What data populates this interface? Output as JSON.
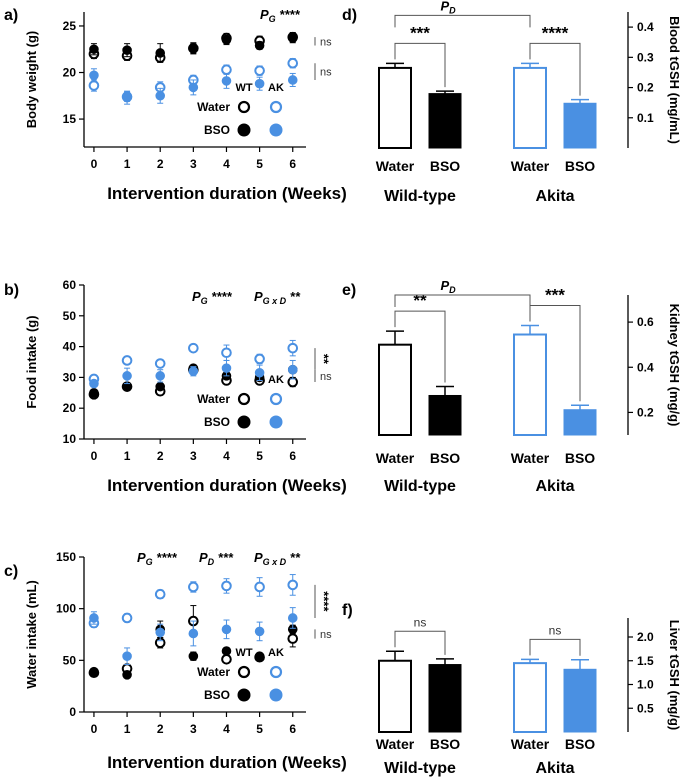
{
  "colors": {
    "wt": "#000000",
    "ak": "#4a90e2",
    "axis": "#000000",
    "sig": "#333333"
  },
  "legend": {
    "col_wt": "WT",
    "col_ak": "AK",
    "row_water": "Water",
    "row_bso": "BSO"
  },
  "chart_data": [
    {
      "id": "a",
      "type": "scatter",
      "panel_label": "a)",
      "xlabel": "Intervention duration (Weeks)",
      "ylabel": "Body weight (g)",
      "xlim": [
        -0.3,
        6.4
      ],
      "ylim": [
        12,
        26.5
      ],
      "yticks": [
        15,
        20,
        25
      ],
      "xticks": [
        0,
        1,
        2,
        3,
        4,
        5,
        6
      ],
      "x": [
        0,
        1,
        2,
        3,
        4,
        5,
        6
      ],
      "series": [
        {
          "name": "WT Water",
          "group": "wt",
          "filled": false,
          "values": [
            22.0,
            21.8,
            21.6,
            22.6,
            23.7,
            23.4,
            23.8
          ],
          "err": [
            0.5,
            0.5,
            0.5,
            0.5,
            0.5,
            0.5,
            0.5
          ]
        },
        {
          "name": "WT BSO",
          "group": "wt",
          "filled": true,
          "values": [
            22.5,
            22.4,
            22.1,
            22.6,
            23.5,
            22.9,
            23.7
          ],
          "err": [
            0.6,
            0.7,
            1.0,
            0.6,
            0.5,
            0.4,
            0.5
          ]
        },
        {
          "name": "AK Water",
          "group": "ak",
          "filled": false,
          "values": [
            18.6,
            17.4,
            18.4,
            19.2,
            20.3,
            20.2,
            21.0
          ],
          "err": [
            0.6,
            0.5,
            0.6,
            0.5,
            0.5,
            0.5,
            0.5
          ]
        },
        {
          "name": "AK BSO",
          "group": "ak",
          "filled": true,
          "values": [
            19.7,
            17.3,
            17.5,
            18.4,
            19.1,
            18.8,
            19.2
          ],
          "err": [
            0.7,
            0.7,
            0.8,
            0.8,
            0.8,
            0.7,
            0.7
          ]
        }
      ],
      "annotations": [
        {
          "main": "P",
          "sub": "G",
          "stars": " ****"
        }
      ],
      "brackets": [
        {
          "y1": 23.8,
          "y2": 22.9,
          "label": "ns"
        },
        {
          "y1": 21.0,
          "y2": 19.2,
          "label": "ns"
        }
      ],
      "legend_position": "bottom-right"
    },
    {
      "id": "b",
      "type": "scatter",
      "panel_label": "b)",
      "xlabel": "Intervention duration (Weeks)",
      "ylabel": "Food intake (g)",
      "xlim": [
        -0.3,
        6.4
      ],
      "ylim": [
        10,
        60
      ],
      "yticks": [
        10,
        20,
        30,
        40,
        50,
        60
      ],
      "xticks": [
        0,
        1,
        2,
        3,
        4,
        5,
        6
      ],
      "x": [
        0,
        1,
        2,
        3,
        4,
        5,
        6
      ],
      "series": [
        {
          "name": "WT Water",
          "group": "wt",
          "filled": false,
          "values": [
            24.5,
            27.0,
            25.5,
            32.5,
            29.0,
            29.0,
            28.5
          ],
          "err": [
            0.6,
            0.6,
            0.6,
            0.6,
            0.7,
            0.6,
            1.5
          ]
        },
        {
          "name": "WT BSO",
          "group": "wt",
          "filled": true,
          "values": [
            25.0,
            27.0,
            27.0,
            33.0,
            30.5,
            30.0,
            32.5
          ],
          "err": [
            0.7,
            0.7,
            0.7,
            0.8,
            1.0,
            0.8,
            1.0
          ]
        },
        {
          "name": "AK Water",
          "group": "ak",
          "filled": false,
          "values": [
            29.5,
            35.5,
            34.5,
            39.5,
            38.0,
            36.0,
            39.5
          ],
          "err": [
            0.8,
            1.0,
            1.0,
            1.0,
            2.5,
            1.5,
            2.5
          ]
        },
        {
          "name": "AK BSO",
          "group": "ak",
          "filled": true,
          "values": [
            28.0,
            30.5,
            30.5,
            32.0,
            33.0,
            31.5,
            32.5
          ],
          "err": [
            1.0,
            2.5,
            2.0,
            1.5,
            2.5,
            2.5,
            3.0
          ]
        }
      ],
      "annotations": [
        {
          "main": "P",
          "sub": "G",
          "stars": " ****"
        },
        {
          "main": "P",
          "sub": "G x D",
          "stars": " **"
        }
      ],
      "brackets": [
        {
          "y1": 39.5,
          "y2": 32.5,
          "label": "**"
        },
        {
          "y1": 32.5,
          "y2": 28.5,
          "label": "ns"
        }
      ],
      "legend_position": "bottom-right"
    },
    {
      "id": "c",
      "type": "scatter",
      "panel_label": "c)",
      "xlabel": "Intervention duration (Weeks)",
      "ylabel": "Water intake (mL)",
      "xlim": [
        -0.3,
        6.4
      ],
      "ylim": [
        0,
        150
      ],
      "yticks": [
        0,
        50,
        100,
        150
      ],
      "xticks": [
        0,
        1,
        2,
        3,
        4,
        5,
        6
      ],
      "x": [
        0,
        1,
        2,
        3,
        4,
        5,
        6
      ],
      "series": [
        {
          "name": "WT Water",
          "group": "wt",
          "filled": false,
          "values": [
            38,
            42,
            67,
            88,
            51,
            53,
            71
          ],
          "err": [
            2,
            2,
            5,
            15,
            2,
            2,
            8
          ]
        },
        {
          "name": "WT BSO",
          "group": "wt",
          "filled": true,
          "values": [
            39,
            36,
            80,
            54,
            59,
            54,
            80
          ],
          "err": [
            2,
            2,
            8,
            4,
            3,
            2,
            4
          ]
        },
        {
          "name": "AK Water",
          "group": "ak",
          "filled": false,
          "values": [
            86,
            91,
            114,
            121,
            122,
            121,
            123
          ],
          "err": [
            4,
            4,
            4,
            5,
            7,
            9,
            10
          ]
        },
        {
          "name": "AK BSO",
          "group": "ak",
          "filled": true,
          "values": [
            91,
            54,
            77,
            76,
            80,
            78,
            91
          ],
          "err": [
            6,
            8,
            8,
            12,
            9,
            9,
            10
          ]
        }
      ],
      "annotations": [
        {
          "main": "P",
          "sub": "G",
          "stars": " ****"
        },
        {
          "main": "P",
          "sub": "D",
          "stars": " ***"
        },
        {
          "main": "P",
          "sub": "G x D",
          "stars": " **"
        }
      ],
      "brackets": [
        {
          "y1": 123,
          "y2": 91,
          "label": "****"
        },
        {
          "y1": 80,
          "y2": 71,
          "label": "ns"
        }
      ],
      "legend_position": "bottom-right"
    },
    {
      "id": "d",
      "type": "bar",
      "panel_label": "d)",
      "ylabel": "Blood tGSH (mg/mL)",
      "ylim": [
        0.0,
        0.45
      ],
      "yticks": [
        0.1,
        0.2,
        0.3,
        0.4
      ],
      "categories": [
        "Water",
        "BSO",
        "Water",
        "BSO"
      ],
      "groups": [
        "Wild-type",
        "Akita"
      ],
      "values": [
        0.265,
        0.18,
        0.265,
        0.148
      ],
      "err": [
        0.015,
        0.008,
        0.015,
        0.012
      ],
      "bar_style": [
        "wt-open",
        "wt-filled",
        "ak-open",
        "ak-filled"
      ],
      "comparisons": [
        {
          "a": 0,
          "b": 1,
          "label": "***",
          "level": 0
        },
        {
          "a": 2,
          "b": 3,
          "label": "****",
          "level": 0
        },
        {
          "a": 0,
          "b": 2,
          "label": "****",
          "main": "P",
          "sub": "D",
          "level": 1
        }
      ]
    },
    {
      "id": "e",
      "type": "bar",
      "panel_label": "e)",
      "ylabel": "Kidney tGSH (mg/g)",
      "ylim": [
        0.1,
        0.72
      ],
      "yticks": [
        0.2,
        0.4,
        0.6
      ],
      "categories": [
        "Water",
        "BSO",
        "Water",
        "BSO"
      ],
      "groups": [
        "Wild-type",
        "Akita"
      ],
      "values": [
        0.5,
        0.275,
        0.545,
        0.212
      ],
      "err": [
        0.06,
        0.04,
        0.04,
        0.02
      ],
      "bar_style": [
        "wt-open",
        "wt-filled",
        "ak-open",
        "ak-filled"
      ],
      "comparisons": [
        {
          "a": 0,
          "b": 1,
          "label": "**",
          "level": 0
        },
        {
          "a": 2,
          "b": 3,
          "label": "***",
          "level": 0
        },
        {
          "a": 0,
          "b": 2,
          "label": "****",
          "main": "P",
          "sub": "D",
          "level": 1
        }
      ]
    },
    {
      "id": "f",
      "type": "bar",
      "panel_label": "f)",
      "ylabel": "Liver tGSH (mg/g)",
      "ylim": [
        0.0,
        2.4
      ],
      "yticks": [
        0.5,
        1.0,
        1.5,
        2.0
      ],
      "categories": [
        "Water",
        "BSO",
        "Water",
        "BSO"
      ],
      "groups": [
        "Wild-type",
        "Akita"
      ],
      "values": [
        1.5,
        1.42,
        1.45,
        1.32
      ],
      "err": [
        0.2,
        0.12,
        0.08,
        0.2
      ],
      "bar_style": [
        "wt-open",
        "wt-filled",
        "ak-open",
        "ak-filled"
      ],
      "comparisons": [
        {
          "a": 0,
          "b": 1,
          "label": "ns",
          "level": 0
        },
        {
          "a": 2,
          "b": 3,
          "label": "ns",
          "level": 0
        }
      ]
    }
  ]
}
